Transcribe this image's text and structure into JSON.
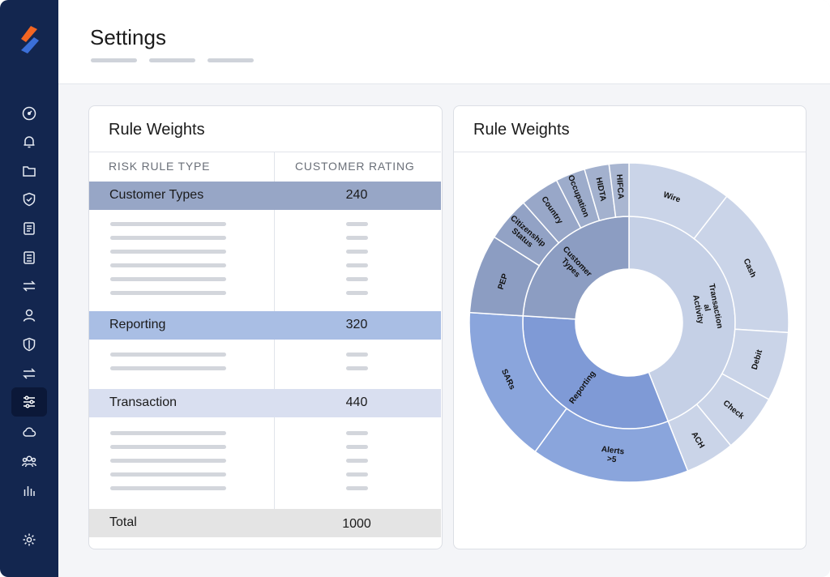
{
  "header": {
    "title": "Settings"
  },
  "colors": {
    "sidebar": "#13264f",
    "accent": "#f26522",
    "customer_types": "#97a6c6",
    "reporting": "#a9bee4",
    "transaction": "#d9dff0",
    "total": "#e4e4e4"
  },
  "sidebar": {
    "logo": "logo-icon",
    "items": [
      {
        "icon": "dashboard-icon"
      },
      {
        "icon": "bell-icon"
      },
      {
        "icon": "folder-icon"
      },
      {
        "icon": "shield-check-icon"
      },
      {
        "icon": "document-icon"
      },
      {
        "icon": "report-icon"
      },
      {
        "icon": "transfer-icon"
      },
      {
        "icon": "user-icon"
      },
      {
        "icon": "shield-icon"
      },
      {
        "icon": "exchange-icon"
      },
      {
        "icon": "sliders-icon",
        "active": true
      },
      {
        "icon": "cloud-icon"
      },
      {
        "icon": "users-icon"
      },
      {
        "icon": "bar-chart-icon"
      },
      {
        "icon": "settings-icon"
      }
    ]
  },
  "rule_table": {
    "title": "Rule Weights",
    "columns": [
      "RISK RULE TYPE",
      "CUSTOMER RATING"
    ],
    "groups": [
      {
        "label": "Customer Types",
        "value": "240"
      },
      {
        "label": "Reporting",
        "value": "320"
      },
      {
        "label": "Transaction",
        "value": "440"
      }
    ],
    "total": {
      "label": "Total",
      "value": "1000"
    }
  },
  "chart_panel": {
    "title": "Rule Weights"
  },
  "chart_data": {
    "type": "sunburst",
    "inner": [
      {
        "name": "Customer Types",
        "value": 240
      },
      {
        "name": "Transaction al Activity",
        "value": 440
      },
      {
        "name": "Reporting",
        "value": 320
      }
    ],
    "outer": [
      {
        "name": "Wire",
        "parent": "Transaction al Activity",
        "value": 105
      },
      {
        "name": "Cash",
        "parent": "Transaction al Activity",
        "value": 155
      },
      {
        "name": "Debit",
        "parent": "Transaction al Activity",
        "value": 70
      },
      {
        "name": "Check",
        "parent": "Transaction al Activity",
        "value": 60
      },
      {
        "name": "ACH",
        "parent": "Transaction al Activity",
        "value": 50
      },
      {
        "name": "Alerts >5",
        "parent": "Reporting",
        "value": 160
      },
      {
        "name": "SARs",
        "parent": "Reporting",
        "value": 160
      },
      {
        "name": "PEP",
        "parent": "Customer Types",
        "value": 80
      },
      {
        "name": "Citizenship Status",
        "parent": "Customer Types",
        "value": 45
      },
      {
        "name": "Country",
        "parent": "Customer Types",
        "value": 40
      },
      {
        "name": "Occupation",
        "parent": "Customer Types",
        "value": 30
      },
      {
        "name": "HIDTA",
        "parent": "Customer Types",
        "value": 25
      },
      {
        "name": "HIFCA",
        "parent": "Customer Types",
        "value": 20
      }
    ],
    "colors": {
      "Customer Types": "#8c9dc2",
      "Transaction al Activity": "#c5d0e6",
      "Reporting": "#8aa5dc"
    }
  }
}
